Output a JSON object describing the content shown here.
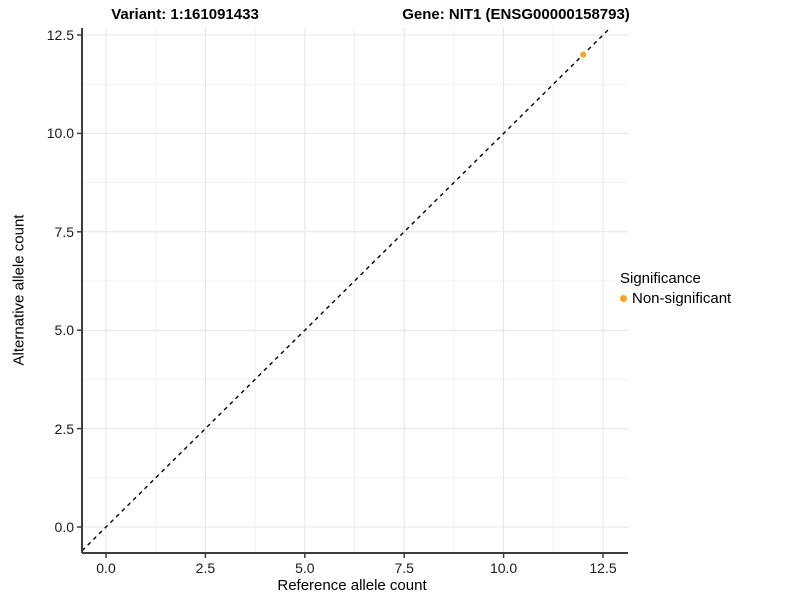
{
  "titles": {
    "variant": "Variant: 1:161091433",
    "gene": "Gene: NIT1 (ENSG00000158793)"
  },
  "chart_data": {
    "type": "scatter",
    "xlabel": "Reference allele count",
    "ylabel": "Alternative allele count",
    "xlim": [
      0,
      12.5
    ],
    "ylim": [
      0,
      12.5
    ],
    "x_ticks": [
      0.0,
      2.5,
      5.0,
      7.5,
      10.0,
      12.5
    ],
    "y_ticks": [
      0.0,
      2.5,
      5.0,
      7.5,
      10.0,
      12.5
    ],
    "x_minor_ticks": [
      1.25,
      3.75,
      6.25,
      8.75,
      11.25
    ],
    "y_minor_ticks": [
      1.25,
      3.75,
      6.25,
      8.75,
      11.25
    ],
    "grid": true,
    "legend_position": "right",
    "points": [
      {
        "x": 12,
        "y": 12,
        "series": "Non-significant"
      }
    ],
    "series": [
      {
        "name": "Non-significant",
        "color": "#F9A32B"
      }
    ],
    "reference_line": {
      "slope": 1,
      "intercept": 0,
      "style": "dashed",
      "color": "#000000"
    }
  },
  "legend": {
    "title": "Significance",
    "entries": [
      {
        "label": "Non-significant",
        "color": "#F9A32B"
      }
    ]
  },
  "style_colors": {
    "grid_major": "#E4E4E4",
    "grid_minor": "#F1F1F1",
    "axis_line": "#3C3C3C",
    "point": "#F9A32B"
  }
}
